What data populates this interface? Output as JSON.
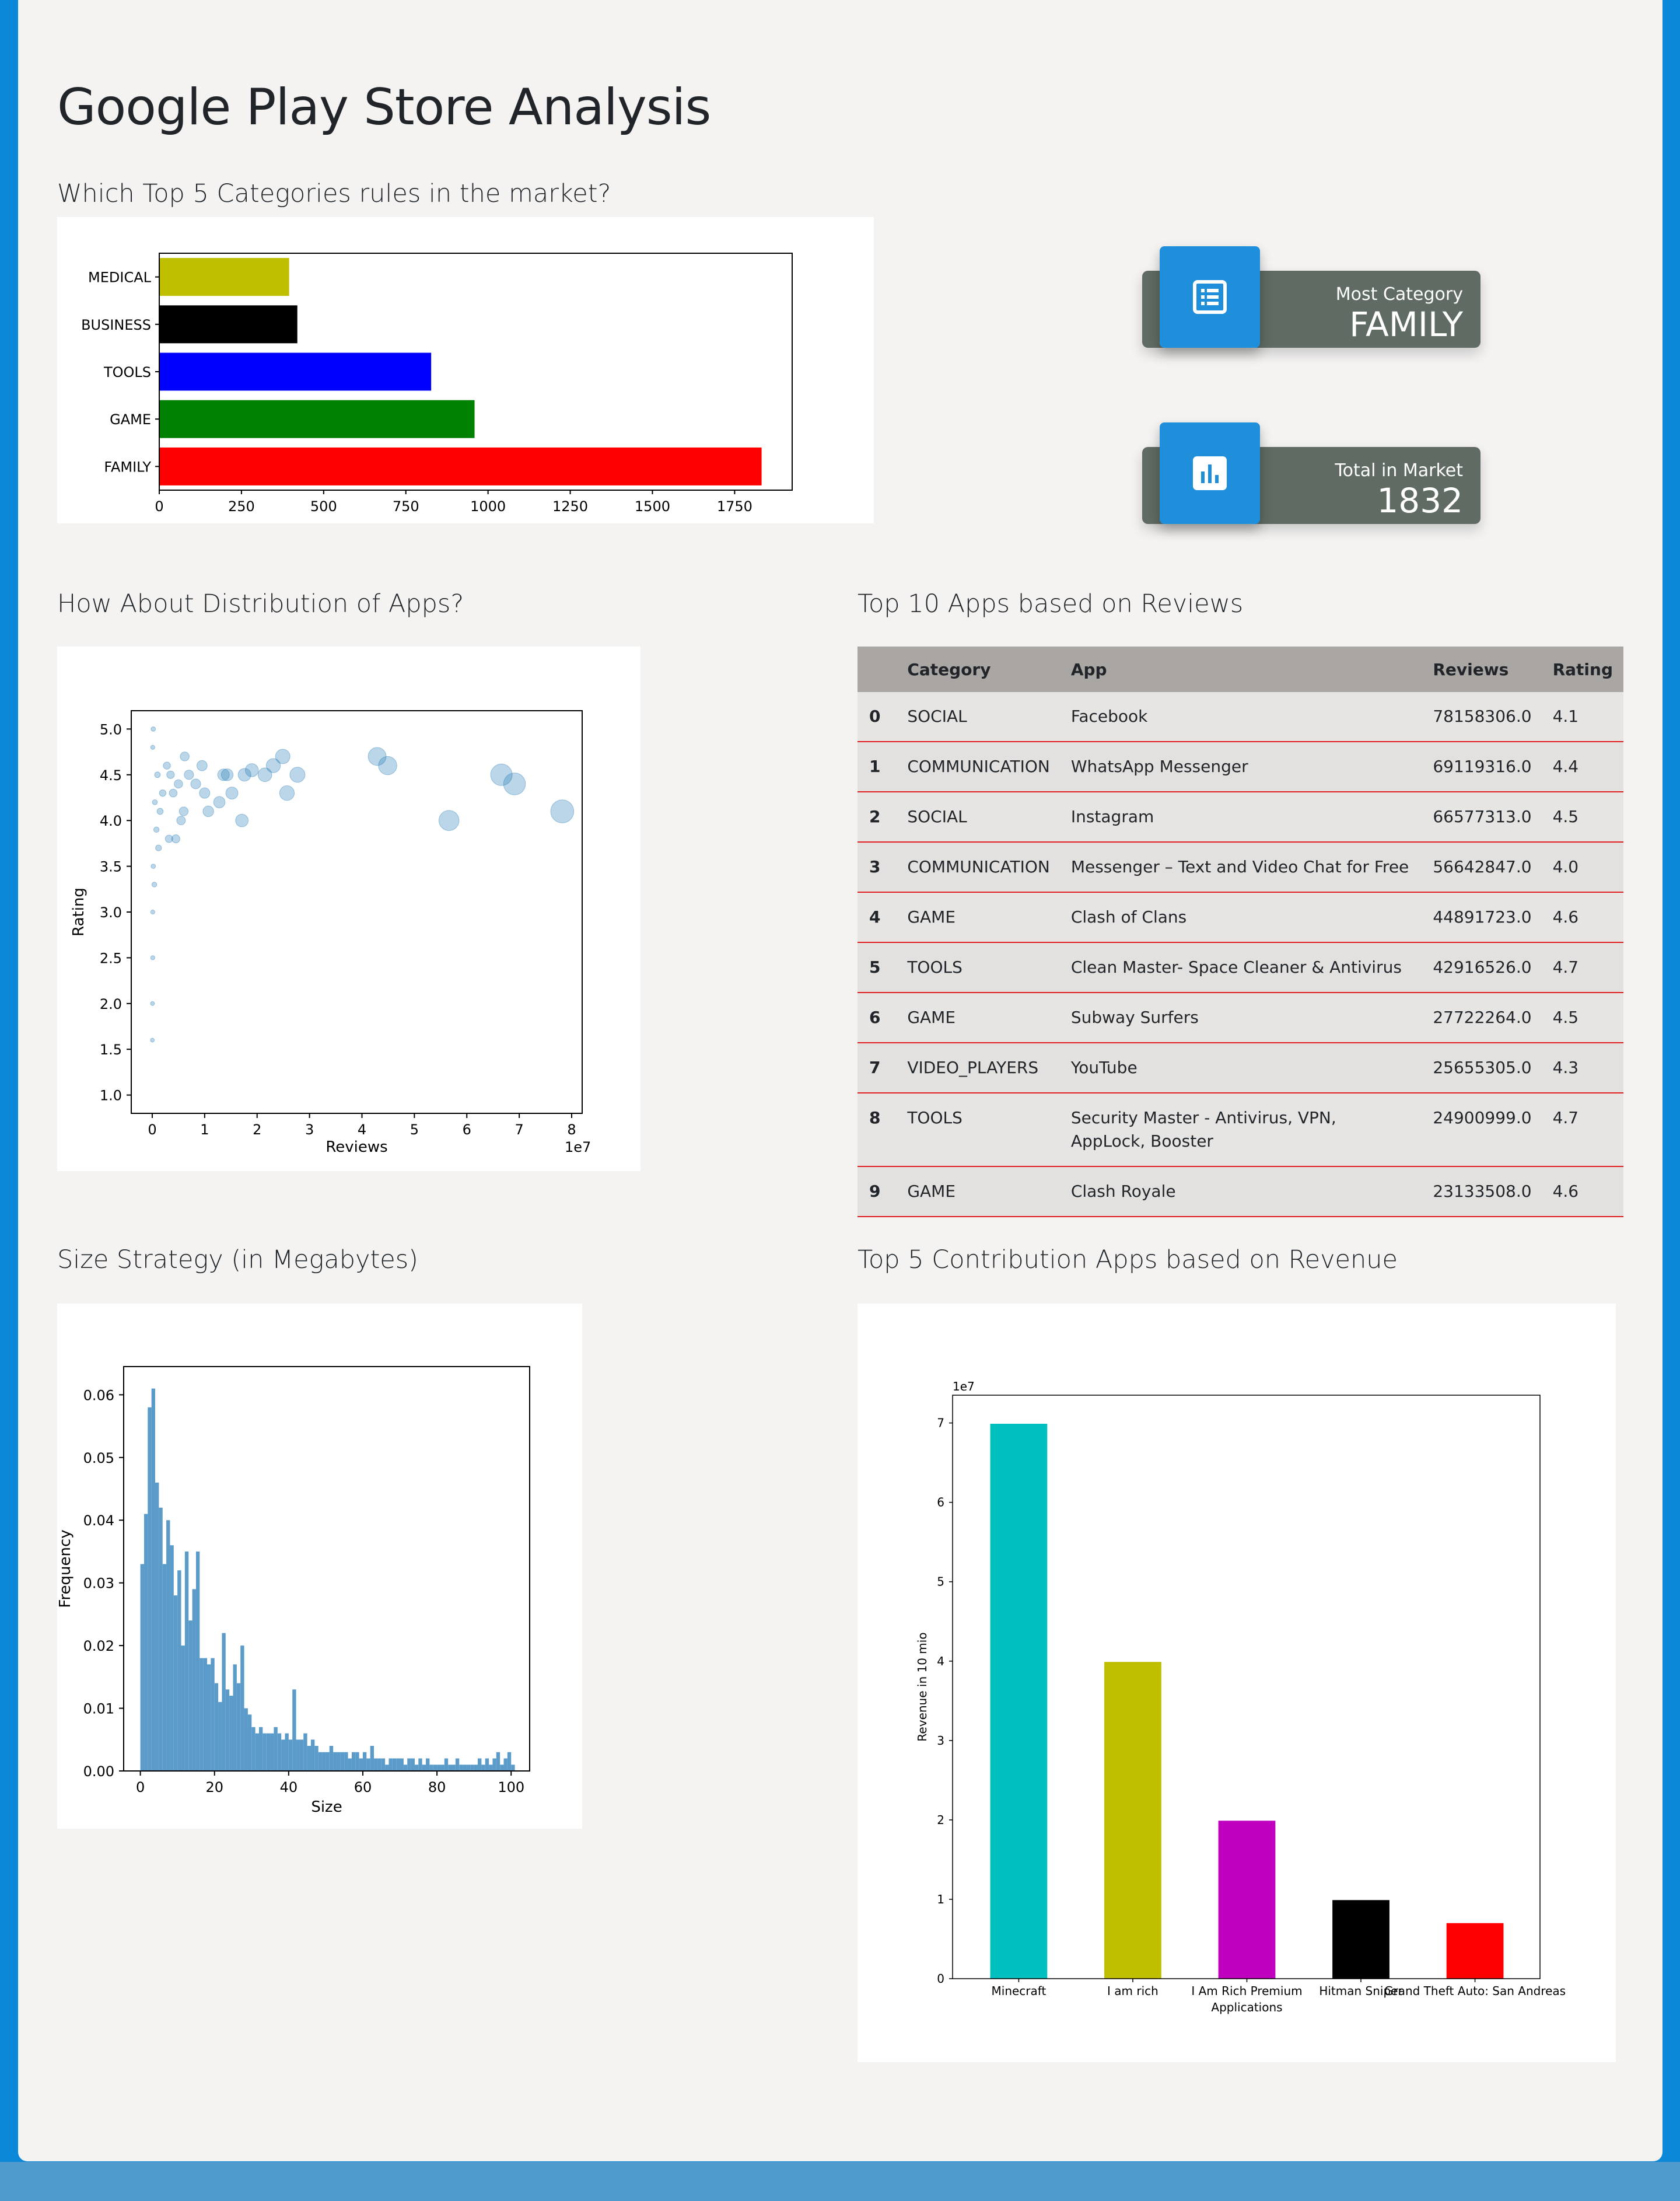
{
  "page_title": "Google Play Store Analysis",
  "sections": {
    "top_categories": "Which Top 5 Categories rules in the market?",
    "distribution": "How About Distribution of Apps?",
    "top_reviews": "Top 10 Apps based on Reviews",
    "size_strategy": "Size Strategy (in Megabytes)",
    "revenue": "Top 5 Contribution Apps based on Revenue"
  },
  "stats": {
    "most_category": {
      "label": "Most Category",
      "value": "FAMILY",
      "icon": "list-icon"
    },
    "total_in_market": {
      "label": "Total in Market",
      "value": "1832",
      "icon": "bar-chart-icon"
    }
  },
  "table": {
    "headers": [
      "",
      "Category",
      "App",
      "Reviews",
      "Rating"
    ],
    "rows": [
      [
        "0",
        "SOCIAL",
        "Facebook",
        "78158306.0",
        "4.1"
      ],
      [
        "1",
        "COMMUNICATION",
        "WhatsApp Messenger",
        "69119316.0",
        "4.4"
      ],
      [
        "2",
        "SOCIAL",
        "Instagram",
        "66577313.0",
        "4.5"
      ],
      [
        "3",
        "COMMUNICATION",
        "Messenger – Text and Video Chat for Free",
        "56642847.0",
        "4.0"
      ],
      [
        "4",
        "GAME",
        "Clash of Clans",
        "44891723.0",
        "4.6"
      ],
      [
        "5",
        "TOOLS",
        "Clean Master- Space Cleaner & Antivirus",
        "42916526.0",
        "4.7"
      ],
      [
        "6",
        "GAME",
        "Subway Surfers",
        "27722264.0",
        "4.5"
      ],
      [
        "7",
        "VIDEO_PLAYERS",
        "YouTube",
        "25655305.0",
        "4.3"
      ],
      [
        "8",
        "TOOLS",
        "Security Master - Antivirus, VPN, AppLock, Booster",
        "24900999.0",
        "4.7"
      ],
      [
        "9",
        "GAME",
        "Clash Royale",
        "23133508.0",
        "4.6"
      ]
    ]
  },
  "colors": {
    "accent_blue": "#1f8fdb",
    "stat_card": "#5f6b63",
    "table_rule": "#e02020",
    "hist": "#5b9bc9"
  },
  "chart_data": [
    {
      "type": "bar",
      "orientation": "horizontal",
      "categories": [
        "FAMILY",
        "GAME",
        "TOOLS",
        "BUSINESS",
        "MEDICAL"
      ],
      "values": [
        1832,
        959,
        827,
        420,
        395
      ],
      "colors": [
        "#ff0000",
        "#008000",
        "#0000ff",
        "#000000",
        "#bfbf00"
      ],
      "xlim": [
        0,
        1925
      ],
      "xticks": [
        "0",
        "250",
        "500",
        "750",
        "1000",
        "1250",
        "1500",
        "1750"
      ]
    },
    {
      "type": "scatter",
      "xlabel": "Reviews",
      "ylabel": "Rating",
      "x_offset_label": "1e7",
      "xlim": [
        -0.4,
        8.2
      ],
      "ylim": [
        0.8,
        5.2
      ],
      "xticks": [
        "0",
        "1",
        "2",
        "3",
        "4",
        "5",
        "6",
        "7",
        "8"
      ],
      "yticks": [
        "1.0",
        "1.5",
        "2.0",
        "2.5",
        "3.0",
        "3.5",
        "4.0",
        "4.5",
        "5.0"
      ],
      "points": [
        [
          7.82,
          4.1
        ],
        [
          6.91,
          4.4
        ],
        [
          6.66,
          4.5
        ],
        [
          5.66,
          4.0
        ],
        [
          4.49,
          4.6
        ],
        [
          4.29,
          4.7
        ],
        [
          2.77,
          4.5
        ],
        [
          2.57,
          4.3
        ],
        [
          2.49,
          4.7
        ],
        [
          2.31,
          4.6
        ],
        [
          1.71,
          4.0
        ],
        [
          1.76,
          4.5
        ],
        [
          1.43,
          4.5
        ],
        [
          1.52,
          4.3
        ],
        [
          1.07,
          4.1
        ],
        [
          1.28,
          4.2
        ],
        [
          1.36,
          4.5
        ],
        [
          0.95,
          4.6
        ],
        [
          0.55,
          4.0
        ],
        [
          0.32,
          3.8
        ],
        [
          0.12,
          3.7
        ],
        [
          0.28,
          4.6
        ],
        [
          0.5,
          4.4
        ],
        [
          0.83,
          4.4
        ],
        [
          0.15,
          4.1
        ],
        [
          0.62,
          4.7
        ],
        [
          0.4,
          4.3
        ],
        [
          0.05,
          4.2
        ],
        [
          0.1,
          4.5
        ],
        [
          0.2,
          4.3
        ],
        [
          0.35,
          4.5
        ],
        [
          0.7,
          4.5
        ],
        [
          1.0,
          4.3
        ],
        [
          0.08,
          3.9
        ],
        [
          0.02,
          3.5
        ],
        [
          0.01,
          3.0
        ],
        [
          0.01,
          2.5
        ],
        [
          0.005,
          2.0
        ],
        [
          0.003,
          1.6
        ],
        [
          0.01,
          4.8
        ],
        [
          0.02,
          5.0
        ],
        [
          0.04,
          3.3
        ],
        [
          2.15,
          4.5
        ],
        [
          0.45,
          3.8
        ],
        [
          1.9,
          4.55
        ],
        [
          0.6,
          4.1
        ]
      ]
    },
    {
      "type": "histogram",
      "xlabel": "Size",
      "ylabel": "Frequency",
      "xlim": [
        -4.5,
        105
      ],
      "ylim": [
        0,
        0.0645
      ],
      "xticks": [
        "0",
        "20",
        "40",
        "60",
        "80",
        "100"
      ],
      "yticks": [
        "0.00",
        "0.01",
        "0.02",
        "0.03",
        "0.04",
        "0.05",
        "0.06"
      ],
      "bin_width": 1,
      "values": [
        0.033,
        0.041,
        0.058,
        0.061,
        0.046,
        0.042,
        0.033,
        0.04,
        0.036,
        0.028,
        0.032,
        0.02,
        0.035,
        0.024,
        0.029,
        0.035,
        0.018,
        0.018,
        0.017,
        0.018,
        0.014,
        0.011,
        0.022,
        0.013,
        0.012,
        0.017,
        0.014,
        0.02,
        0.01,
        0.009,
        0.007,
        0.006,
        0.007,
        0.006,
        0.006,
        0.006,
        0.007,
        0.006,
        0.005,
        0.006,
        0.005,
        0.013,
        0.005,
        0.005,
        0.006,
        0.004,
        0.005,
        0.004,
        0.003,
        0.003,
        0.003,
        0.004,
        0.003,
        0.003,
        0.003,
        0.003,
        0.002,
        0.003,
        0.003,
        0.002,
        0.003,
        0.002,
        0.004,
        0.002,
        0.002,
        0.002,
        0.001,
        0.002,
        0.002,
        0.002,
        0.002,
        0.001,
        0.002,
        0.002,
        0.001,
        0.002,
        0.001,
        0.002,
        0.001,
        0.001,
        0.001,
        0.001,
        0.002,
        0.001,
        0.001,
        0.002,
        0.001,
        0.001,
        0.001,
        0.001,
        0.001,
        0.002,
        0.001,
        0.002,
        0.001,
        0.002,
        0.003,
        0.001,
        0.002,
        0.003,
        0.001
      ]
    },
    {
      "type": "bar",
      "categories": [
        "Minecraft",
        "I am rich",
        "I Am Rich Premium\nApplications",
        "Hitman Sniper",
        "Grand Theft Auto: San Andreas"
      ],
      "values": [
        6.99,
        3.99,
        1.99,
        0.99,
        0.7
      ],
      "colors": [
        "#00bfbf",
        "#bfbf00",
        "#bf00bf",
        "#000000",
        "#ff0000"
      ],
      "ylabel": "Revenue in 10 mio",
      "y_offset_label": "1e7",
      "ylim": [
        0,
        7.35
      ],
      "yticks": [
        "0",
        "1",
        "2",
        "3",
        "4",
        "5",
        "6",
        "7"
      ]
    }
  ]
}
